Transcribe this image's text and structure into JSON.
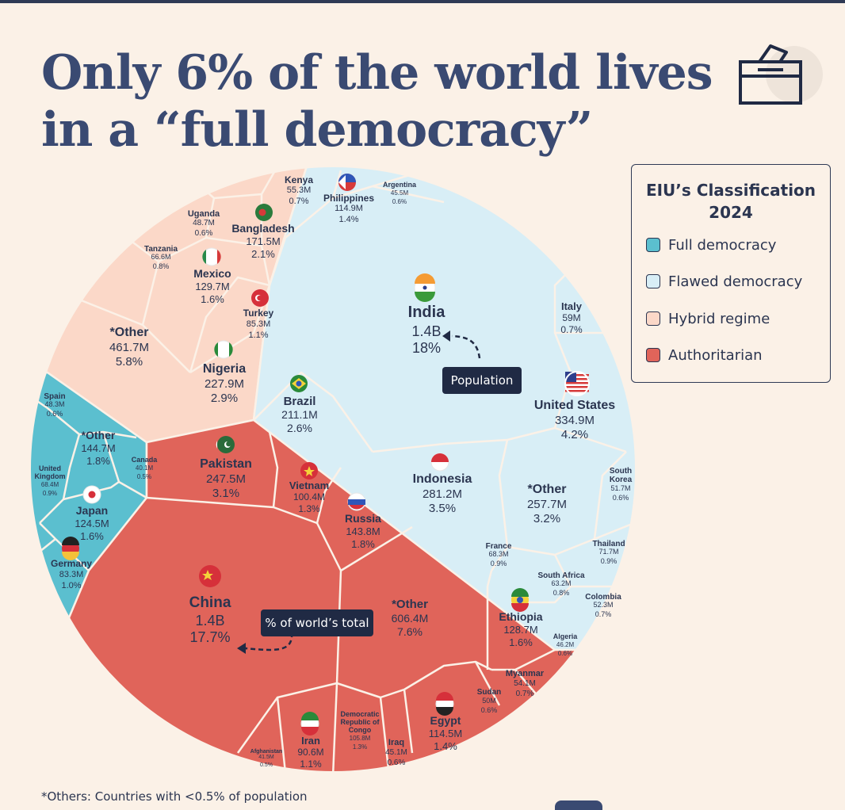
{
  "title_line1": "Only 6% of the world lives",
  "title_line2": "in a “full democracy”",
  "legend": {
    "title_line1": "EIU’s Classification",
    "title_line2": "2024",
    "items": [
      {
        "label": "Full democracy",
        "color": "#5bbfcf"
      },
      {
        "label": "Flawed democracy",
        "color": "#d8eef6"
      },
      {
        "label": "Hybrid regime",
        "color": "#fbd8c8"
      },
      {
        "label": "Authoritarian",
        "color": "#e0645a"
      }
    ]
  },
  "callouts": {
    "population": "Population",
    "share": "% of world’s total"
  },
  "footnote": "*Others: Countries with <0.5% of population",
  "chart_data": {
    "type": "voronoi treemap",
    "title": "Only 6% of the world lives in a “full democracy”",
    "unit": "population; share of world total",
    "series": [
      {
        "name": "Full democracy",
        "color": "#5bbfcf",
        "values": [
          {
            "country": "Spain",
            "population": "48.3M",
            "share": "0.6%"
          },
          {
            "country": "*Other",
            "population": "144.7M",
            "share": "1.8%"
          },
          {
            "country": "Canada",
            "population": "40.1M",
            "share": "0.5%"
          },
          {
            "country": "United Kingdom",
            "population": "68.4M",
            "share": "0.9%"
          },
          {
            "country": "Japan",
            "population": "124.5M",
            "share": "1.6%"
          },
          {
            "country": "Germany",
            "population": "83.3M",
            "share": "1.0%"
          }
        ]
      },
      {
        "name": "Flawed democracy",
        "color": "#d8eef6",
        "values": [
          {
            "country": "India",
            "population": "1.4B",
            "share": "18%"
          },
          {
            "country": "Philippines",
            "population": "114.9M",
            "share": "1.4%"
          },
          {
            "country": "Argentina",
            "population": "45.5M",
            "share": "0.6%"
          },
          {
            "country": "Italy",
            "population": "59M",
            "share": "0.7%"
          },
          {
            "country": "United States",
            "population": "334.9M",
            "share": "4.2%"
          },
          {
            "country": "Brazil",
            "population": "211.1M",
            "share": "2.6%"
          },
          {
            "country": "Indonesia",
            "population": "281.2M",
            "share": "3.5%"
          },
          {
            "country": "*Other",
            "population": "257.7M",
            "share": "3.2%"
          },
          {
            "country": "South Korea",
            "population": "51.7M",
            "share": "0.6%"
          },
          {
            "country": "France",
            "population": "68.3M",
            "share": "0.9%"
          },
          {
            "country": "Thailand",
            "population": "71.7M",
            "share": "0.9%"
          },
          {
            "country": "South Africa",
            "population": "63.2M",
            "share": "0.8%"
          },
          {
            "country": "Colombia",
            "population": "52.3M",
            "share": "0.7%"
          }
        ]
      },
      {
        "name": "Hybrid regime",
        "color": "#fbd8c8",
        "values": [
          {
            "country": "Kenya",
            "population": "55.3M",
            "share": "0.7%"
          },
          {
            "country": "Uganda",
            "population": "48.7M",
            "share": "0.6%"
          },
          {
            "country": "Bangladesh",
            "population": "171.5M",
            "share": "2.1%"
          },
          {
            "country": "Tanzania",
            "population": "66.6M",
            "share": "0.8%"
          },
          {
            "country": "Mexico",
            "population": "129.7M",
            "share": "1.6%"
          },
          {
            "country": "Turkey",
            "population": "85.3M",
            "share": "1.1%"
          },
          {
            "country": "*Other",
            "population": "461.7M",
            "share": "5.8%"
          },
          {
            "country": "Nigeria",
            "population": "227.9M",
            "share": "2.9%"
          }
        ]
      },
      {
        "name": "Authoritarian",
        "color": "#e0645a",
        "values": [
          {
            "country": "Pakistan",
            "population": "247.5M",
            "share": "3.1%"
          },
          {
            "country": "Vietnam",
            "population": "100.4M",
            "share": "1.3%"
          },
          {
            "country": "Russia",
            "population": "143.8M",
            "share": "1.8%"
          },
          {
            "country": "China",
            "population": "1.4B",
            "share": "17.7%"
          },
          {
            "country": "*Other",
            "population": "606.4M",
            "share": "7.6%"
          },
          {
            "country": "Ethiopia",
            "population": "128.7M",
            "share": "1.6%"
          },
          {
            "country": "Algeria",
            "population": "46.2M",
            "share": "0.6%"
          },
          {
            "country": "Myanmar",
            "population": "54.1M",
            "share": "0.7%"
          },
          {
            "country": "Sudan",
            "population": "50M",
            "share": "0.6%"
          },
          {
            "country": "Egypt",
            "population": "114.5M",
            "share": "1.4%"
          },
          {
            "country": "Democratic Republic of Congo",
            "population": "105.8M",
            "share": "1.3%"
          },
          {
            "country": "Iraq",
            "population": "45.1M",
            "share": "0.6%"
          },
          {
            "country": "Iran",
            "population": "90.6M",
            "share": "1.1%"
          },
          {
            "country": "Afghanistan",
            "population": "41.5M",
            "share": "0.5%"
          }
        ]
      }
    ]
  }
}
